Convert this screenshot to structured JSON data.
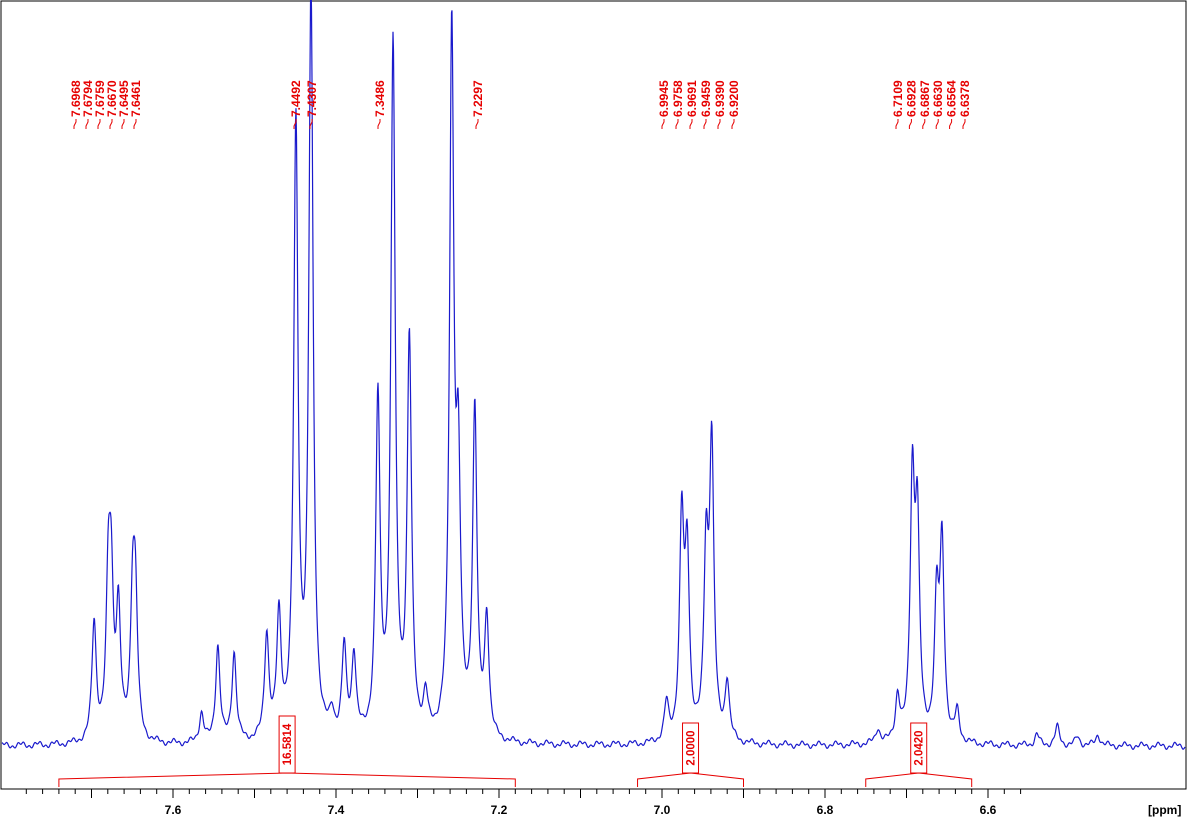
{
  "chart_data": {
    "type": "line",
    "title": "",
    "xlabel": "",
    "ylabel": "",
    "x_unit_label": "[ppm]",
    "x_axis_reversed": true,
    "xlim": [
      7.79,
      6.57
    ],
    "ylim": [
      0,
      1.0
    ],
    "grid": false,
    "legend": "none",
    "colors": {
      "spectrum": "#1a1acc",
      "annotation": "#e60000",
      "axis": "#000000"
    },
    "x_ticks": [
      {
        "value": 7.6,
        "label": "7.6"
      },
      {
        "value": 7.4,
        "label": "7.4"
      },
      {
        "value": 7.2,
        "label": "7.2"
      },
      {
        "value": 7.0,
        "label": "7.0"
      },
      {
        "value": 6.8,
        "label": "6.8"
      },
      {
        "value": 6.6,
        "label": "6.6"
      }
    ],
    "peaks": [
      {
        "ppm": 7.6968,
        "h": 0.16
      },
      {
        "ppm": 7.6794,
        "h": 0.19
      },
      {
        "ppm": 7.6759,
        "h": 0.19
      },
      {
        "ppm": 7.667,
        "h": 0.17
      },
      {
        "ppm": 7.6495,
        "h": 0.18
      },
      {
        "ppm": 7.6461,
        "h": 0.17
      },
      {
        "ppm": 7.565,
        "h": 0.04
      },
      {
        "ppm": 7.545,
        "h": 0.13
      },
      {
        "ppm": 7.525,
        "h": 0.12
      },
      {
        "ppm": 7.485,
        "h": 0.14
      },
      {
        "ppm": 7.47,
        "h": 0.16
      },
      {
        "ppm": 7.4492,
        "h": 0.82
      },
      {
        "ppm": 7.4307,
        "h": 1.0
      },
      {
        "ppm": 7.405,
        "h": 0.03
      },
      {
        "ppm": 7.39,
        "h": 0.12
      },
      {
        "ppm": 7.378,
        "h": 0.11
      },
      {
        "ppm": 7.3486,
        "h": 0.45
      },
      {
        "ppm": 7.33,
        "h": 0.93
      },
      {
        "ppm": 7.31,
        "h": 0.53
      },
      {
        "ppm": 7.29,
        "h": 0.05
      },
      {
        "ppm": 7.258,
        "h": 0.94
      },
      {
        "ppm": 7.25,
        "h": 0.33
      },
      {
        "ppm": 7.2297,
        "h": 0.44
      },
      {
        "ppm": 7.215,
        "h": 0.16
      },
      {
        "ppm": 6.9945,
        "h": 0.05
      },
      {
        "ppm": 6.9758,
        "h": 0.29
      },
      {
        "ppm": 6.9691,
        "h": 0.24
      },
      {
        "ppm": 6.9459,
        "h": 0.24
      },
      {
        "ppm": 6.939,
        "h": 0.39
      },
      {
        "ppm": 6.92,
        "h": 0.08
      },
      {
        "ppm": 6.735,
        "h": 0.02
      },
      {
        "ppm": 6.7109,
        "h": 0.06
      },
      {
        "ppm": 6.6928,
        "h": 0.34
      },
      {
        "ppm": 6.6867,
        "h": 0.28
      },
      {
        "ppm": 6.663,
        "h": 0.18
      },
      {
        "ppm": 6.6564,
        "h": 0.26
      },
      {
        "ppm": 6.6378,
        "h": 0.04
      },
      {
        "ppm": 6.54,
        "h": 0.015
      },
      {
        "ppm": 6.515,
        "h": 0.025
      },
      {
        "ppm": 6.49,
        "h": 0.012
      },
      {
        "ppm": 6.465,
        "h": 0.015
      }
    ],
    "peak_label_groups": [
      {
        "labels": [
          "7.6968",
          "7.6794",
          "7.6759",
          "7.6670",
          "7.6495",
          "7.6461"
        ]
      },
      {
        "labels": [
          "7.4492",
          "7.4307"
        ]
      },
      {
        "labels": [
          "7.3486"
        ]
      },
      {
        "labels": [
          "7.2297"
        ]
      },
      {
        "labels": [
          "6.9945",
          "6.9758",
          "6.9691",
          "6.9459",
          "6.9390",
          "6.9200"
        ]
      },
      {
        "labels": [
          "6.7109",
          "6.6928",
          "6.6867",
          "6.6630",
          "6.6564",
          "6.6378"
        ]
      }
    ],
    "integrals": [
      {
        "from": 7.74,
        "to": 7.18,
        "value": "16.5814"
      },
      {
        "from": 7.03,
        "to": 6.9,
        "value": "2.0000"
      },
      {
        "from": 6.75,
        "to": 6.62,
        "value": "2.0420"
      }
    ]
  }
}
